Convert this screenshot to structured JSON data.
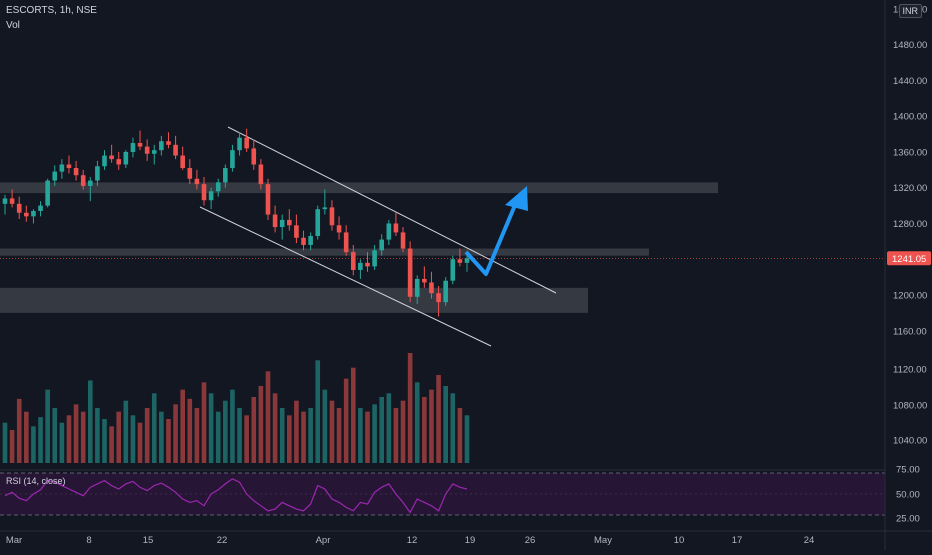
{
  "header": {
    "symbol_line": "ESCORTS, 1h, NSE",
    "volume_label": "Vol",
    "currency": "INR",
    "rsi_label": "RSI (14, close)"
  },
  "colors": {
    "background": "#131722",
    "up": "#26a69a",
    "down": "#ef5350",
    "zone": "#3a3d45",
    "channel": "#d1d4dc",
    "arrow": "#2196f3",
    "rsi_line": "#9c27b0",
    "rsi_band": "#2a1538",
    "price_label_bg": "#ef5350"
  },
  "chart_data": {
    "type": "candlestick",
    "y_axis": {
      "ticks": [
        1160,
        1200,
        1240,
        1280,
        1320,
        1360,
        1400,
        1440,
        1480,
        1520
      ],
      "tick_labels": [
        "1160.00",
        "1200.00",
        "1240.00",
        "1280.00",
        "1320.00",
        "1360.00",
        "1400.00",
        "1440.00",
        "1480.00",
        "1520.00"
      ],
      "lower_ticks": [
        1040,
        1080,
        1120
      ],
      "lower_tick_labels": [
        "1040.00",
        "1080.00",
        "1120.00"
      ]
    },
    "x_axis": {
      "ticks": [
        "Mar",
        "8",
        "15",
        "22",
        "Apr",
        "12",
        "19",
        "26",
        "May",
        "10",
        "17",
        "24"
      ]
    },
    "last_price": 1241.05,
    "last_price_label": "1241.05",
    "candles": [
      [
        1302,
        1312,
        1290,
        1308
      ],
      [
        1308,
        1318,
        1298,
        1302
      ],
      [
        1302,
        1310,
        1285,
        1292
      ],
      [
        1292,
        1300,
        1282,
        1288
      ],
      [
        1288,
        1296,
        1280,
        1294
      ],
      [
        1294,
        1305,
        1288,
        1300
      ],
      [
        1300,
        1330,
        1298,
        1328
      ],
      [
        1328,
        1345,
        1322,
        1338
      ],
      [
        1338,
        1352,
        1330,
        1346
      ],
      [
        1346,
        1356,
        1336,
        1342
      ],
      [
        1342,
        1350,
        1328,
        1334
      ],
      [
        1334,
        1340,
        1318,
        1322
      ],
      [
        1322,
        1332,
        1305,
        1328
      ],
      [
        1328,
        1350,
        1322,
        1344
      ],
      [
        1344,
        1362,
        1340,
        1356
      ],
      [
        1356,
        1368,
        1348,
        1352
      ],
      [
        1352,
        1360,
        1340,
        1346
      ],
      [
        1346,
        1362,
        1342,
        1360
      ],
      [
        1360,
        1376,
        1354,
        1370
      ],
      [
        1370,
        1384,
        1362,
        1366
      ],
      [
        1366,
        1374,
        1350,
        1358
      ],
      [
        1358,
        1368,
        1346,
        1362
      ],
      [
        1362,
        1378,
        1356,
        1372
      ],
      [
        1372,
        1382,
        1364,
        1368
      ],
      [
        1368,
        1378,
        1352,
        1356
      ],
      [
        1356,
        1366,
        1340,
        1342
      ],
      [
        1342,
        1352,
        1324,
        1330
      ],
      [
        1330,
        1340,
        1318,
        1324
      ],
      [
        1324,
        1332,
        1300,
        1306
      ],
      [
        1306,
        1320,
        1296,
        1316
      ],
      [
        1316,
        1330,
        1310,
        1326
      ],
      [
        1326,
        1346,
        1320,
        1342
      ],
      [
        1342,
        1368,
        1338,
        1362
      ],
      [
        1362,
        1382,
        1356,
        1376
      ],
      [
        1376,
        1386,
        1360,
        1364
      ],
      [
        1364,
        1374,
        1340,
        1346
      ],
      [
        1346,
        1352,
        1318,
        1324
      ],
      [
        1324,
        1330,
        1284,
        1290
      ],
      [
        1290,
        1300,
        1270,
        1276
      ],
      [
        1276,
        1290,
        1262,
        1284
      ],
      [
        1284,
        1296,
        1272,
        1278
      ],
      [
        1278,
        1290,
        1258,
        1264
      ],
      [
        1264,
        1272,
        1250,
        1256
      ],
      [
        1256,
        1270,
        1250,
        1266
      ],
      [
        1266,
        1300,
        1262,
        1296
      ],
      [
        1296,
        1318,
        1290,
        1298
      ],
      [
        1298,
        1306,
        1272,
        1278
      ],
      [
        1278,
        1288,
        1262,
        1270
      ],
      [
        1270,
        1278,
        1244,
        1248
      ],
      [
        1248,
        1256,
        1222,
        1228
      ],
      [
        1228,
        1240,
        1218,
        1236
      ],
      [
        1236,
        1248,
        1226,
        1232
      ],
      [
        1232,
        1256,
        1228,
        1250
      ],
      [
        1250,
        1268,
        1244,
        1262
      ],
      [
        1262,
        1284,
        1256,
        1280
      ],
      [
        1280,
        1292,
        1266,
        1270
      ],
      [
        1270,
        1276,
        1248,
        1252
      ],
      [
        1252,
        1260,
        1192,
        1198
      ],
      [
        1198,
        1222,
        1190,
        1218
      ],
      [
        1218,
        1232,
        1208,
        1214
      ],
      [
        1214,
        1226,
        1196,
        1202
      ],
      [
        1202,
        1210,
        1176,
        1192
      ],
      [
        1192,
        1220,
        1188,
        1216
      ],
      [
        1216,
        1244,
        1212,
        1240
      ],
      [
        1240,
        1252,
        1232,
        1236
      ],
      [
        1236,
        1246,
        1226,
        1241
      ]
    ],
    "volume": [
      22,
      18,
      35,
      28,
      20,
      25,
      40,
      30,
      22,
      26,
      32,
      28,
      45,
      30,
      24,
      20,
      28,
      34,
      26,
      22,
      30,
      38,
      28,
      24,
      32,
      40,
      35,
      30,
      44,
      38,
      28,
      34,
      40,
      30,
      26,
      36,
      42,
      50,
      38,
      30,
      26,
      34,
      28,
      30,
      56,
      40,
      34,
      30,
      46,
      52,
      30,
      28,
      32,
      36,
      38,
      30,
      34,
      60,
      44,
      36,
      40,
      48,
      42,
      38,
      30,
      26
    ],
    "rsi": {
      "upper": 75,
      "middle": 50,
      "lower": 25,
      "tick_labels": [
        "75.00",
        "50.00",
        "25.00"
      ],
      "values": [
        48,
        52,
        45,
        42,
        50,
        55,
        66,
        64,
        60,
        56,
        52,
        48,
        58,
        62,
        66,
        60,
        56,
        62,
        65,
        58,
        54,
        60,
        63,
        58,
        52,
        44,
        40,
        42,
        36,
        50,
        55,
        62,
        68,
        64,
        50,
        42,
        36,
        30,
        32,
        40,
        36,
        32,
        30,
        38,
        60,
        56,
        44,
        40,
        34,
        30,
        40,
        38,
        52,
        58,
        62,
        50,
        40,
        28,
        44,
        40,
        36,
        30,
        50,
        62,
        58,
        56
      ]
    }
  },
  "annotations": {
    "zones": [
      {
        "from": 1314,
        "to": 1326,
        "span": "to-may-12"
      },
      {
        "from": 1244,
        "to": 1252,
        "span": "to-apr-28"
      },
      {
        "from": 1180,
        "to": 1208,
        "span": "to-may-01"
      }
    ]
  }
}
